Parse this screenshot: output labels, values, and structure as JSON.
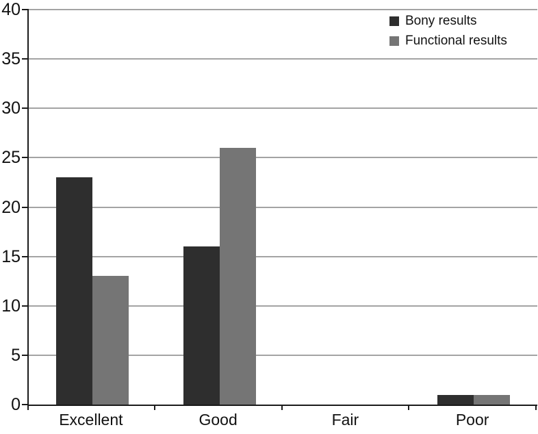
{
  "chart_data": {
    "type": "bar",
    "title": "",
    "xlabel": "",
    "ylabel": "",
    "categories": [
      "Excellent",
      "Good",
      "Fair",
      "Poor"
    ],
    "series": [
      {
        "name": "Bony results",
        "color": "#2e2e2e",
        "values": [
          23,
          16,
          0,
          1
        ]
      },
      {
        "name": "Functional results",
        "color": "#757575",
        "values": [
          13,
          26,
          0,
          1
        ]
      }
    ],
    "ylim": [
      0,
      40
    ],
    "yticks": [
      0,
      5,
      10,
      15,
      20,
      25,
      30,
      35,
      40
    ],
    "grid": true,
    "legend_position": "top-right"
  },
  "colors": {
    "background": "#ffffff",
    "gridline": "#a3a3a3",
    "axis": "#1a1a1a",
    "text": "#111111"
  }
}
